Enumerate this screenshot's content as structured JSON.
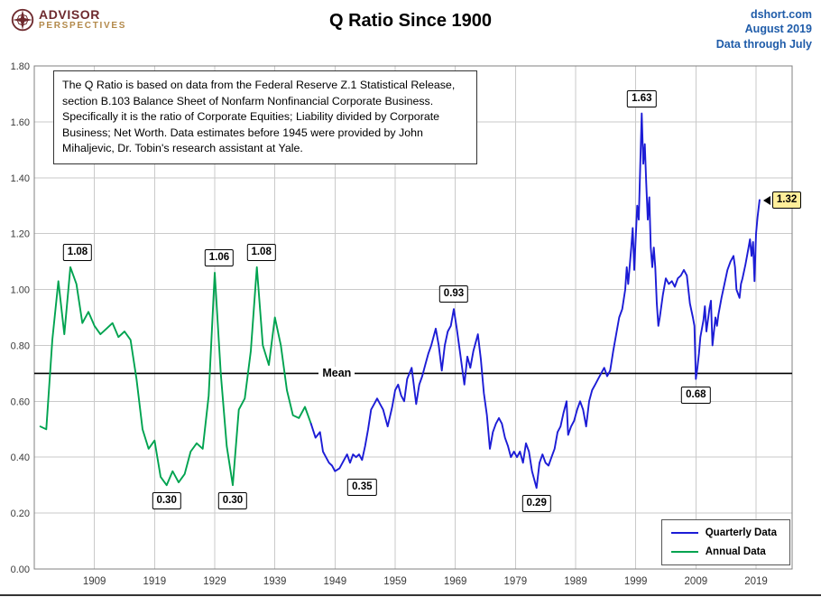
{
  "header": {
    "logo": {
      "line1": "ADVISOR",
      "line2": "PERSPECTIVES"
    },
    "title": "Q Ratio Since 1900",
    "source": {
      "site": "dshort.com",
      "date": "August 2019",
      "note": "Data through July"
    }
  },
  "description": "The Q Ratio is based on data from the Federal Reserve Z.1 Statistical Release, section B.103 Balance Sheet of Nonfarm Nonfinancial Corporate Business. Specifically it is the ratio of Corporate Equities; Liability divided by Corporate Business; Net Worth. Data estimates before 1945 were provided by John Mihaljevic, Dr. Tobin's research assistant at Yale.",
  "chart_data": {
    "type": "line",
    "title": "Q Ratio Since 1900",
    "xlabel": "",
    "ylabel": "",
    "xlim": [
      1899,
      2025
    ],
    "ylim": [
      0,
      1.8
    ],
    "ytick_step": 0.2,
    "xticks": [
      1909,
      1919,
      1929,
      1939,
      1949,
      1959,
      1969,
      1979,
      1989,
      1999,
      2009,
      2019
    ],
    "grid": true,
    "mean": 0.7,
    "mean_label": "Mean",
    "legend": [
      {
        "label": "Quarterly Data",
        "color": "#1C1CD6"
      },
      {
        "label": "Annual Data",
        "color": "#00A350"
      }
    ],
    "series": [
      {
        "name": "Annual Data",
        "color": "#00A350",
        "points": [
          [
            1900,
            0.51
          ],
          [
            1901,
            0.5
          ],
          [
            1902,
            0.82
          ],
          [
            1903,
            1.03
          ],
          [
            1904,
            0.84
          ],
          [
            1905,
            1.08
          ],
          [
            1906,
            1.02
          ],
          [
            1907,
            0.88
          ],
          [
            1908,
            0.92
          ],
          [
            1909,
            0.87
          ],
          [
            1910,
            0.84
          ],
          [
            1911,
            0.86
          ],
          [
            1912,
            0.88
          ],
          [
            1913,
            0.83
          ],
          [
            1914,
            0.85
          ],
          [
            1915,
            0.82
          ],
          [
            1916,
            0.68
          ],
          [
            1917,
            0.5
          ],
          [
            1918,
            0.43
          ],
          [
            1919,
            0.46
          ],
          [
            1920,
            0.33
          ],
          [
            1921,
            0.3
          ],
          [
            1922,
            0.35
          ],
          [
            1923,
            0.31
          ],
          [
            1924,
            0.34
          ],
          [
            1925,
            0.42
          ],
          [
            1926,
            0.45
          ],
          [
            1927,
            0.43
          ],
          [
            1928,
            0.62
          ],
          [
            1929,
            1.06
          ],
          [
            1930,
            0.7
          ],
          [
            1931,
            0.44
          ],
          [
            1932,
            0.3
          ],
          [
            1933,
            0.57
          ],
          [
            1934,
            0.61
          ],
          [
            1935,
            0.78
          ],
          [
            1936,
            1.08
          ],
          [
            1937,
            0.8
          ],
          [
            1938,
            0.73
          ],
          [
            1939,
            0.9
          ],
          [
            1940,
            0.8
          ],
          [
            1941,
            0.64
          ],
          [
            1942,
            0.55
          ],
          [
            1943,
            0.54
          ],
          [
            1944,
            0.58
          ],
          [
            1945,
            0.52
          ]
        ]
      },
      {
        "name": "Quarterly Data",
        "color": "#1C1CD6",
        "points": [
          [
            1945,
            0.52
          ],
          [
            1945.75,
            0.47
          ],
          [
            1946.5,
            0.49
          ],
          [
            1947,
            0.42
          ],
          [
            1947.5,
            0.4
          ],
          [
            1948,
            0.38
          ],
          [
            1948.5,
            0.37
          ],
          [
            1949,
            0.35
          ],
          [
            1949.75,
            0.36
          ],
          [
            1950.5,
            0.39
          ],
          [
            1951,
            0.41
          ],
          [
            1951.5,
            0.38
          ],
          [
            1952,
            0.41
          ],
          [
            1952.5,
            0.4
          ],
          [
            1953,
            0.41
          ],
          [
            1953.5,
            0.39
          ],
          [
            1954,
            0.44
          ],
          [
            1954.5,
            0.5
          ],
          [
            1955,
            0.57
          ],
          [
            1955.5,
            0.59
          ],
          [
            1956,
            0.61
          ],
          [
            1956.5,
            0.59
          ],
          [
            1957,
            0.57
          ],
          [
            1957.75,
            0.51
          ],
          [
            1958.5,
            0.58
          ],
          [
            1959,
            0.64
          ],
          [
            1959.5,
            0.66
          ],
          [
            1960,
            0.62
          ],
          [
            1960.5,
            0.6
          ],
          [
            1961,
            0.68
          ],
          [
            1961.75,
            0.72
          ],
          [
            1962.5,
            0.59
          ],
          [
            1963,
            0.66
          ],
          [
            1963.5,
            0.69
          ],
          [
            1964,
            0.73
          ],
          [
            1964.5,
            0.77
          ],
          [
            1965,
            0.8
          ],
          [
            1965.75,
            0.86
          ],
          [
            1966.25,
            0.8
          ],
          [
            1966.75,
            0.71
          ],
          [
            1967.25,
            0.8
          ],
          [
            1967.75,
            0.85
          ],
          [
            1968.25,
            0.87
          ],
          [
            1968.75,
            0.93
          ],
          [
            1969.25,
            0.86
          ],
          [
            1969.75,
            0.78
          ],
          [
            1970.5,
            0.66
          ],
          [
            1971,
            0.76
          ],
          [
            1971.5,
            0.72
          ],
          [
            1972,
            0.78
          ],
          [
            1972.75,
            0.84
          ],
          [
            1973.25,
            0.75
          ],
          [
            1973.75,
            0.63
          ],
          [
            1974.25,
            0.55
          ],
          [
            1974.75,
            0.43
          ],
          [
            1975.25,
            0.49
          ],
          [
            1975.75,
            0.52
          ],
          [
            1976.25,
            0.54
          ],
          [
            1976.75,
            0.52
          ],
          [
            1977.25,
            0.47
          ],
          [
            1977.75,
            0.44
          ],
          [
            1978.25,
            0.4
          ],
          [
            1978.75,
            0.42
          ],
          [
            1979.25,
            0.4
          ],
          [
            1979.75,
            0.42
          ],
          [
            1980.25,
            0.38
          ],
          [
            1980.75,
            0.45
          ],
          [
            1981.25,
            0.42
          ],
          [
            1981.75,
            0.35
          ],
          [
            1982.5,
            0.29
          ],
          [
            1983,
            0.38
          ],
          [
            1983.5,
            0.41
          ],
          [
            1984,
            0.38
          ],
          [
            1984.5,
            0.37
          ],
          [
            1985,
            0.4
          ],
          [
            1985.5,
            0.43
          ],
          [
            1986,
            0.49
          ],
          [
            1986.5,
            0.51
          ],
          [
            1987,
            0.56
          ],
          [
            1987.5,
            0.6
          ],
          [
            1987.75,
            0.48
          ],
          [
            1988.25,
            0.51
          ],
          [
            1988.75,
            0.53
          ],
          [
            1989.25,
            0.57
          ],
          [
            1989.75,
            0.6
          ],
          [
            1990.25,
            0.57
          ],
          [
            1990.75,
            0.51
          ],
          [
            1991.25,
            0.6
          ],
          [
            1991.75,
            0.64
          ],
          [
            1992.25,
            0.66
          ],
          [
            1992.75,
            0.68
          ],
          [
            1993.25,
            0.7
          ],
          [
            1993.75,
            0.72
          ],
          [
            1994.25,
            0.69
          ],
          [
            1994.75,
            0.71
          ],
          [
            1995.25,
            0.78
          ],
          [
            1995.75,
            0.84
          ],
          [
            1996.25,
            0.9
          ],
          [
            1996.75,
            0.93
          ],
          [
            1997.25,
            1.0
          ],
          [
            1997.5,
            1.08
          ],
          [
            1997.75,
            1.02
          ],
          [
            1998.25,
            1.15
          ],
          [
            1998.5,
            1.22
          ],
          [
            1998.75,
            1.07
          ],
          [
            1999.25,
            1.3
          ],
          [
            1999.5,
            1.25
          ],
          [
            1999.75,
            1.45
          ],
          [
            2000,
            1.63
          ],
          [
            2000.25,
            1.45
          ],
          [
            2000.5,
            1.52
          ],
          [
            2000.75,
            1.38
          ],
          [
            2001,
            1.25
          ],
          [
            2001.25,
            1.33
          ],
          [
            2001.5,
            1.15
          ],
          [
            2001.75,
            1.08
          ],
          [
            2002,
            1.15
          ],
          [
            2002.25,
            1.08
          ],
          [
            2002.5,
            0.95
          ],
          [
            2002.75,
            0.87
          ],
          [
            2003,
            0.9
          ],
          [
            2003.5,
            0.98
          ],
          [
            2004,
            1.04
          ],
          [
            2004.5,
            1.02
          ],
          [
            2005,
            1.03
          ],
          [
            2005.5,
            1.01
          ],
          [
            2006,
            1.04
          ],
          [
            2006.5,
            1.05
          ],
          [
            2007,
            1.07
          ],
          [
            2007.5,
            1.05
          ],
          [
            2008,
            0.95
          ],
          [
            2008.5,
            0.9
          ],
          [
            2008.75,
            0.87
          ],
          [
            2009,
            0.68
          ],
          [
            2009.25,
            0.72
          ],
          [
            2009.5,
            0.77
          ],
          [
            2009.75,
            0.83
          ],
          [
            2010.25,
            0.89
          ],
          [
            2010.5,
            0.94
          ],
          [
            2010.75,
            0.85
          ],
          [
            2011.25,
            0.93
          ],
          [
            2011.5,
            0.96
          ],
          [
            2011.75,
            0.8
          ],
          [
            2012.25,
            0.9
          ],
          [
            2012.5,
            0.87
          ],
          [
            2012.75,
            0.91
          ],
          [
            2013.25,
            0.97
          ],
          [
            2013.75,
            1.02
          ],
          [
            2014.25,
            1.07
          ],
          [
            2014.75,
            1.1
          ],
          [
            2015.25,
            1.12
          ],
          [
            2015.5,
            1.08
          ],
          [
            2015.75,
            1.0
          ],
          [
            2016.25,
            0.97
          ],
          [
            2016.5,
            1.02
          ],
          [
            2016.75,
            1.04
          ],
          [
            2017.25,
            1.09
          ],
          [
            2017.5,
            1.12
          ],
          [
            2017.75,
            1.15
          ],
          [
            2018,
            1.18
          ],
          [
            2018.25,
            1.12
          ],
          [
            2018.5,
            1.17
          ],
          [
            2018.75,
            1.03
          ],
          [
            2019,
            1.2
          ],
          [
            2019.25,
            1.26
          ],
          [
            2019.58,
            1.32
          ]
        ]
      }
    ],
    "annotations": [
      {
        "text": "1.08",
        "x": 1905,
        "y": 1.08,
        "placement": "above",
        "dx": 8
      },
      {
        "text": "0.30",
        "x": 1921,
        "y": 0.3,
        "placement": "below"
      },
      {
        "text": "1.06",
        "x": 1929,
        "y": 1.06,
        "placement": "above",
        "dx": 5
      },
      {
        "text": "0.30",
        "x": 1932,
        "y": 0.3,
        "placement": "below"
      },
      {
        "text": "1.08",
        "x": 1936,
        "y": 1.08,
        "placement": "above",
        "dx": 5
      },
      {
        "text": "0.35",
        "x": 1949,
        "y": 0.35,
        "placement": "below",
        "dx": 30
      },
      {
        "text": "0.93",
        "x": 1968.75,
        "y": 0.93,
        "placement": "above"
      },
      {
        "text": "0.29",
        "x": 1982.5,
        "y": 0.29,
        "placement": "below"
      },
      {
        "text": "1.63",
        "x": 2000,
        "y": 1.63,
        "placement": "above"
      },
      {
        "text": "0.68",
        "x": 2009,
        "y": 0.68,
        "placement": "below"
      },
      {
        "text": "1.32",
        "x": 2019.58,
        "y": 1.32,
        "placement": "right",
        "highlight": true
      }
    ]
  }
}
